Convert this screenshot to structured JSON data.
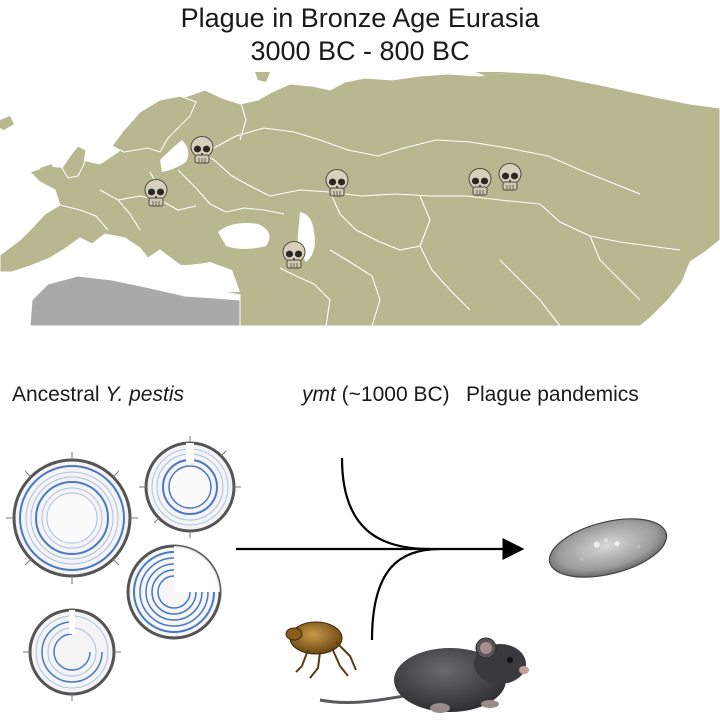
{
  "title": {
    "line1": "Plague in Bronze Age Eurasia",
    "line2": "3000 BC - 800 BC"
  },
  "labels": {
    "ancestral_prefix": "Ancestral ",
    "ancestral_species": "Y. pestis",
    "ymt_gene": "ymt",
    "ymt_date": " (~1000 BC)",
    "pandemics": "Plague pandemics"
  },
  "colors": {
    "land": "#b8b78f",
    "africa": "#a9a9a9",
    "sea": "#ffffff",
    "border": "#ffffff",
    "genome_blue": "#4a78c4",
    "arrow": "#000000"
  },
  "map": {
    "sites": [
      {
        "name": "baltic"
      },
      {
        "name": "central-europe"
      },
      {
        "name": "caucasus"
      },
      {
        "name": "kazakh-steppe"
      },
      {
        "name": "altai-1"
      },
      {
        "name": "altai-2"
      }
    ]
  },
  "icons": [
    "skull-icon",
    "genome-plot-icon",
    "flea-icon",
    "mouse-icon",
    "bacterium-icon",
    "arrow-icon"
  ]
}
